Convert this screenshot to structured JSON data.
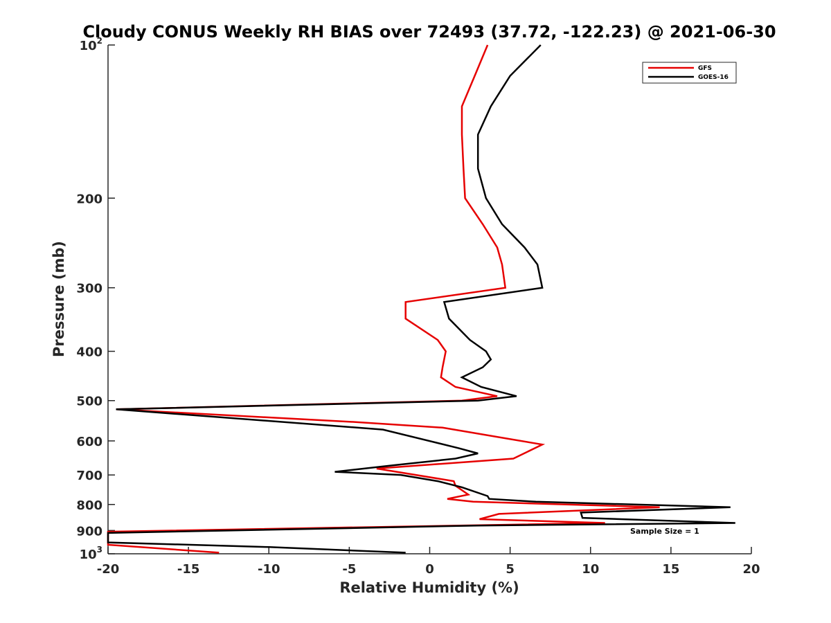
{
  "chart_data": {
    "type": "line",
    "title": "Cloudy CONUS Weekly RH BIAS over 72493 (37.72, -122.23) @ 2021-06-30",
    "xlabel": "Relative Humidity (%)",
    "ylabel": "Pressure (mb)",
    "xlim": [
      -20,
      20
    ],
    "ylim": [
      100,
      1000
    ],
    "y_scale": "log",
    "y_reversed": true,
    "x_ticks": [
      -20,
      -15,
      -10,
      -5,
      0,
      5,
      10,
      15,
      20
    ],
    "x_tick_labels": [
      "-20",
      "-15",
      "-10",
      "-5",
      "0",
      "5",
      "10",
      "15",
      "20"
    ],
    "y_ticks": [
      100,
      200,
      300,
      400,
      500,
      600,
      700,
      800,
      900,
      1000
    ],
    "y_tick_labels": [
      {
        "base": "10",
        "exp": "2"
      },
      {
        "base": "200",
        "exp": ""
      },
      {
        "base": "300",
        "exp": ""
      },
      {
        "base": "400",
        "exp": ""
      },
      {
        "base": "500",
        "exp": ""
      },
      {
        "base": "600",
        "exp": ""
      },
      {
        "base": "700",
        "exp": ""
      },
      {
        "base": "800",
        "exp": ""
      },
      {
        "base": "900",
        "exp": ""
      },
      {
        "base": "10",
        "exp": "3"
      }
    ],
    "grid": false,
    "legend_position": "top-right",
    "annotation": "Sample Size = 1",
    "series": [
      {
        "name": "GFS",
        "color": "#e60000",
        "points": [
          [
            3.6,
            100
          ],
          [
            2.8,
            115
          ],
          [
            2.0,
            132
          ],
          [
            2.0,
            150
          ],
          [
            2.1,
            175
          ],
          [
            2.2,
            200
          ],
          [
            3.3,
            225
          ],
          [
            4.2,
            250
          ],
          [
            4.5,
            270
          ],
          [
            4.7,
            300
          ],
          [
            -1.5,
            320
          ],
          [
            -1.5,
            345
          ],
          [
            0.5,
            380
          ],
          [
            1.0,
            400
          ],
          [
            0.8,
            430
          ],
          [
            0.7,
            450
          ],
          [
            1.6,
            470
          ],
          [
            4.2,
            490
          ],
          [
            2.0,
            500
          ],
          [
            -19.5,
            520
          ],
          [
            -5.0,
            550
          ],
          [
            0.8,
            565
          ],
          [
            7.0,
            610
          ],
          [
            5.2,
            650
          ],
          [
            -3.3,
            680
          ],
          [
            1.5,
            720
          ],
          [
            1.6,
            735
          ],
          [
            2.4,
            765
          ],
          [
            1.1,
            780
          ],
          [
            2.7,
            790
          ],
          [
            14.3,
            810
          ],
          [
            4.3,
            835
          ],
          [
            3.1,
            855
          ],
          [
            10.9,
            870
          ],
          [
            1.9,
            880
          ],
          [
            -20.0,
            905
          ],
          [
            -20.0,
            960
          ],
          [
            -13.1,
            995
          ]
        ]
      },
      {
        "name": "GOES-16",
        "color": "#000000",
        "points": [
          [
            6.9,
            100
          ],
          [
            5.0,
            115
          ],
          [
            3.8,
            132
          ],
          [
            3.0,
            150
          ],
          [
            3.0,
            175
          ],
          [
            3.5,
            200
          ],
          [
            4.5,
            225
          ],
          [
            5.9,
            250
          ],
          [
            6.7,
            270
          ],
          [
            7.0,
            300
          ],
          [
            0.9,
            320
          ],
          [
            1.2,
            345
          ],
          [
            2.5,
            380
          ],
          [
            3.5,
            400
          ],
          [
            3.8,
            415
          ],
          [
            3.3,
            430
          ],
          [
            2.0,
            450
          ],
          [
            3.2,
            470
          ],
          [
            5.4,
            490
          ],
          [
            3.0,
            500
          ],
          [
            -19.5,
            520
          ],
          [
            -2.9,
            570
          ],
          [
            1.8,
            620
          ],
          [
            3.0,
            635
          ],
          [
            1.6,
            650
          ],
          [
            -2.3,
            670
          ],
          [
            -5.9,
            690
          ],
          [
            -1.8,
            700
          ],
          [
            0.5,
            720
          ],
          [
            2.0,
            740
          ],
          [
            3.6,
            770
          ],
          [
            3.7,
            780
          ],
          [
            6.6,
            790
          ],
          [
            18.7,
            810
          ],
          [
            9.4,
            830
          ],
          [
            9.5,
            850
          ],
          [
            19.0,
            870
          ],
          [
            3.0,
            880
          ],
          [
            -20.0,
            910
          ],
          [
            -20.0,
            950
          ],
          [
            -10.0,
            970
          ],
          [
            -1.5,
            995
          ]
        ]
      }
    ]
  }
}
